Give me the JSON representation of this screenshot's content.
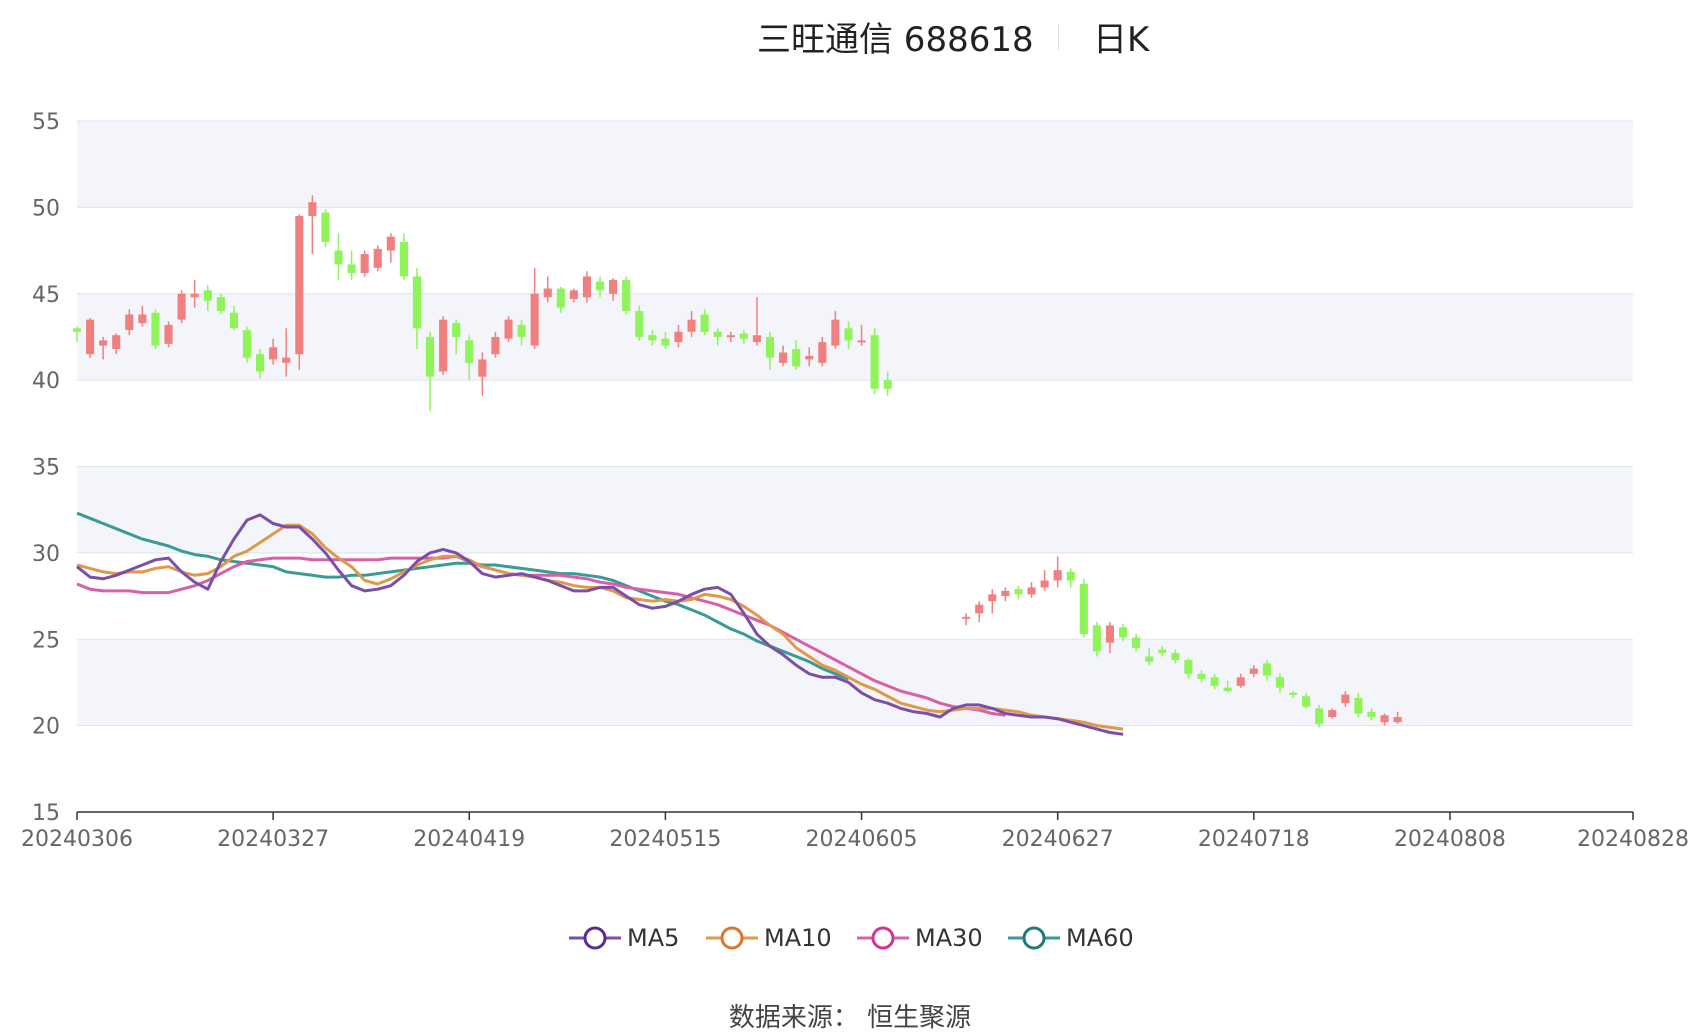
{
  "header": {
    "title": "三旺通信 688618",
    "period": "日K"
  },
  "source_text": "数据来源： 恒生聚源",
  "colors": {
    "up": "#f08080",
    "down": "#8ff35a",
    "MA5": "#7a4fa8",
    "MA10": "#e0984a",
    "MA30": "#d95fa8",
    "MA60": "#3a9a96",
    "grid": "#dde3ee",
    "band": "#f4f5fa"
  },
  "chart_data": {
    "type": "candlestick",
    "ylim": [
      15,
      55
    ],
    "yticks": [
      15,
      20,
      25,
      30,
      35,
      40,
      45,
      50,
      55
    ],
    "x_tick_labels": [
      "20240306",
      "20240327",
      "20240419",
      "20240515",
      "20240605",
      "20240627",
      "20240718",
      "20240808",
      "20240828"
    ],
    "x_tick_index": [
      0,
      15,
      30,
      45,
      60,
      75,
      90,
      105,
      119
    ],
    "candles": [
      [
        43.0,
        42.8,
        43.1,
        42.2
      ],
      [
        41.5,
        43.5,
        43.6,
        41.3
      ],
      [
        42.0,
        42.3,
        42.5,
        41.2
      ],
      [
        41.8,
        42.6,
        42.7,
        41.5
      ],
      [
        42.9,
        43.8,
        44.1,
        42.6
      ],
      [
        43.3,
        43.8,
        44.3,
        43.1
      ],
      [
        43.9,
        42.0,
        44.1,
        41.8
      ],
      [
        42.1,
        43.2,
        43.4,
        41.9
      ],
      [
        43.5,
        45.0,
        45.2,
        43.3
      ],
      [
        44.8,
        45.0,
        45.8,
        44.2
      ],
      [
        45.2,
        44.6,
        45.5,
        44.0
      ],
      [
        44.8,
        44.0,
        45.0,
        43.8
      ],
      [
        43.9,
        43.0,
        44.3,
        42.9
      ],
      [
        42.9,
        41.3,
        43.1,
        41.0
      ],
      [
        41.5,
        40.5,
        41.8,
        40.1
      ],
      [
        41.2,
        41.9,
        42.4,
        40.9
      ],
      [
        41.0,
        41.3,
        43.0,
        40.2
      ],
      [
        41.5,
        49.5,
        49.6,
        40.6
      ],
      [
        49.5,
        50.3,
        50.7,
        47.3
      ],
      [
        49.7,
        48.0,
        49.9,
        47.7
      ],
      [
        47.5,
        46.7,
        48.5,
        45.8
      ],
      [
        46.7,
        46.2,
        47.5,
        45.8
      ],
      [
        46.2,
        47.3,
        47.5,
        46.0
      ],
      [
        46.5,
        47.6,
        47.8,
        46.3
      ],
      [
        47.5,
        48.3,
        48.5,
        46.8
      ],
      [
        48.0,
        46.0,
        48.5,
        45.8
      ],
      [
        46.0,
        43.0,
        46.5,
        41.8
      ],
      [
        42.5,
        40.2,
        42.8,
        38.2
      ],
      [
        40.5,
        43.5,
        43.7,
        40.3
      ],
      [
        43.3,
        42.5,
        43.5,
        41.5
      ],
      [
        42.3,
        41.0,
        42.6,
        40.0
      ],
      [
        40.2,
        41.2,
        41.6,
        39.1
      ],
      [
        41.5,
        42.5,
        42.8,
        41.3
      ],
      [
        42.4,
        43.5,
        43.7,
        42.2
      ],
      [
        43.2,
        42.5,
        43.5,
        42.0
      ],
      [
        42.0,
        45.0,
        46.5,
        41.8
      ],
      [
        44.8,
        45.3,
        46.0,
        44.5
      ],
      [
        45.3,
        44.2,
        45.4,
        43.9
      ],
      [
        44.7,
        45.2,
        45.3,
        44.5
      ],
      [
        44.8,
        46.0,
        46.3,
        44.5
      ],
      [
        45.7,
        45.2,
        46.0,
        44.8
      ],
      [
        45.0,
        45.8,
        45.9,
        44.6
      ],
      [
        45.8,
        44.0,
        46.0,
        43.8
      ],
      [
        44.0,
        42.5,
        44.3,
        42.3
      ],
      [
        42.6,
        42.3,
        42.9,
        42.0
      ],
      [
        42.4,
        42.0,
        42.8,
        41.8
      ],
      [
        42.2,
        42.8,
        43.2,
        41.9
      ],
      [
        42.8,
        43.5,
        44.0,
        42.5
      ],
      [
        43.8,
        42.8,
        44.1,
        42.6
      ],
      [
        42.8,
        42.5,
        43.0,
        42.0
      ],
      [
        42.5,
        42.6,
        42.8,
        42.2
      ],
      [
        42.7,
        42.4,
        42.9,
        42.1
      ],
      [
        42.2,
        42.6,
        44.8,
        42.0
      ],
      [
        42.5,
        41.3,
        42.8,
        40.6
      ],
      [
        41.0,
        41.6,
        42.0,
        40.8
      ],
      [
        41.8,
        40.8,
        42.3,
        40.6
      ],
      [
        41.2,
        41.4,
        41.9,
        40.8
      ],
      [
        41.0,
        42.2,
        42.5,
        40.8
      ],
      [
        42.0,
        43.5,
        44.0,
        41.8
      ],
      [
        43.0,
        42.3,
        43.4,
        41.8
      ],
      [
        42.2,
        42.3,
        43.2,
        42.0
      ],
      [
        42.6,
        39.5,
        43.0,
        39.2
      ],
      [
        40.0,
        39.5,
        40.5,
        39.1
      ],
      null,
      null,
      null,
      null,
      null,
      [
        26.2,
        26.3,
        26.5,
        25.8
      ],
      [
        26.5,
        27.0,
        27.2,
        26.0
      ],
      [
        27.2,
        27.6,
        27.9,
        26.5
      ],
      [
        27.5,
        27.8,
        28.0,
        27.2
      ],
      [
        27.9,
        27.6,
        28.1,
        27.3
      ],
      [
        27.6,
        28.0,
        28.3,
        27.4
      ],
      [
        28.0,
        28.4,
        29.0,
        27.8
      ],
      [
        28.4,
        29.0,
        29.8,
        28.0
      ],
      [
        28.9,
        28.4,
        29.1,
        28.0
      ],
      [
        28.2,
        25.3,
        28.5,
        25.1
      ],
      [
        25.8,
        24.3,
        26.0,
        24.0
      ],
      [
        24.8,
        25.8,
        26.0,
        24.2
      ],
      [
        25.7,
        25.1,
        25.9,
        24.9
      ],
      [
        25.1,
        24.5,
        25.3,
        24.3
      ],
      [
        24.0,
        23.7,
        24.5,
        23.5
      ],
      [
        24.4,
        24.2,
        24.6,
        24.0
      ],
      [
        24.2,
        23.8,
        24.4,
        23.6
      ],
      [
        23.8,
        23.0,
        23.9,
        22.7
      ],
      [
        23.0,
        22.7,
        23.2,
        22.5
      ],
      [
        22.8,
        22.3,
        23.0,
        22.1
      ],
      [
        22.2,
        22.0,
        22.6,
        21.9
      ],
      [
        22.3,
        22.8,
        23.0,
        22.2
      ],
      [
        23.0,
        23.3,
        23.5,
        22.8
      ],
      [
        23.6,
        22.9,
        23.8,
        22.6
      ],
      [
        22.8,
        22.2,
        23.0,
        21.9
      ],
      [
        21.9,
        21.8,
        22.0,
        21.6
      ],
      [
        21.7,
        21.1,
        21.9,
        21.0
      ],
      [
        21.0,
        20.1,
        21.2,
        19.9
      ],
      [
        20.5,
        20.9,
        21.0,
        20.4
      ],
      [
        21.3,
        21.8,
        22.0,
        21.1
      ],
      [
        21.6,
        20.7,
        21.9,
        20.5
      ],
      [
        20.8,
        20.5,
        21.0,
        20.3
      ],
      [
        20.2,
        20.6,
        20.7,
        20.0
      ],
      [
        20.2,
        20.5,
        20.8,
        20.1
      ]
    ],
    "ma5": [
      29.2,
      28.6,
      28.5,
      28.7,
      29.0,
      29.3,
      29.6,
      29.7,
      28.9,
      28.3,
      27.9,
      29.5,
      30.8,
      31.9,
      32.2,
      31.7,
      31.5,
      31.5,
      30.8,
      30.0,
      29.0,
      28.1,
      27.8,
      27.9,
      28.1,
      28.7,
      29.5,
      30.0,
      30.2,
      30.0,
      29.5,
      28.8,
      28.6,
      28.7,
      28.8,
      28.6,
      28.4,
      28.1,
      27.8,
      27.8,
      28.0,
      28.0,
      27.5,
      27.0,
      26.8,
      26.9,
      27.2,
      27.6,
      27.9,
      28.0,
      27.6,
      26.5,
      25.3,
      24.6,
      24.1,
      23.5,
      23.0,
      22.8,
      22.8,
      22.5,
      21.9,
      21.5,
      21.3,
      21.0,
      20.8,
      20.7,
      20.5,
      21.0,
      21.2,
      21.2,
      21.0,
      20.7,
      20.6,
      20.5,
      20.5,
      20.4,
      20.2,
      20.0,
      19.8,
      19.6,
      19.5
    ],
    "ma10": [
      29.3,
      29.1,
      28.9,
      28.8,
      28.9,
      28.9,
      29.1,
      29.2,
      28.9,
      28.7,
      28.8,
      29.2,
      29.8,
      30.1,
      30.6,
      31.1,
      31.6,
      31.6,
      31.1,
      30.3,
      29.7,
      29.2,
      28.4,
      28.2,
      28.5,
      28.9,
      29.3,
      29.6,
      29.8,
      29.8,
      29.6,
      29.2,
      29.0,
      28.8,
      28.7,
      28.6,
      28.4,
      28.3,
      28.1,
      28.0,
      28.0,
      27.8,
      27.4,
      27.3,
      27.2,
      27.3,
      27.2,
      27.3,
      27.6,
      27.5,
      27.3,
      26.9,
      26.4,
      25.8,
      25.3,
      24.5,
      24.0,
      23.5,
      23.2,
      22.8,
      22.4,
      22.1,
      21.7,
      21.3,
      21.1,
      20.9,
      20.8,
      20.9,
      21.0,
      21.0,
      21.0,
      20.9,
      20.8,
      20.6,
      20.5,
      20.4,
      20.3,
      20.2,
      20.0,
      19.9,
      19.8
    ],
    "ma30": [
      28.2,
      27.9,
      27.8,
      27.8,
      27.8,
      27.7,
      27.7,
      27.7,
      27.9,
      28.1,
      28.4,
      28.8,
      29.2,
      29.5,
      29.6,
      29.7,
      29.7,
      29.7,
      29.6,
      29.6,
      29.6,
      29.6,
      29.6,
      29.6,
      29.7,
      29.7,
      29.7,
      29.7,
      29.7,
      29.8,
      29.5,
      29.2,
      29.0,
      28.8,
      28.7,
      28.7,
      28.7,
      28.7,
      28.6,
      28.5,
      28.3,
      28.2,
      28.0,
      27.9,
      27.8,
      27.7,
      27.6,
      27.4,
      27.2,
      27.0,
      26.7,
      26.4,
      26.1,
      25.8,
      25.4,
      25.0,
      24.6,
      24.2,
      23.8,
      23.4,
      23.0,
      22.6,
      22.3,
      22.0,
      21.8,
      21.6,
      21.3,
      21.1,
      21.0,
      20.9,
      20.7,
      20.6
    ],
    "ma60": [
      32.3,
      32.0,
      31.7,
      31.4,
      31.1,
      30.8,
      30.6,
      30.4,
      30.1,
      29.9,
      29.8,
      29.6,
      29.5,
      29.4,
      29.3,
      29.2,
      28.9,
      28.8,
      28.7,
      28.6,
      28.6,
      28.7,
      28.7,
      28.8,
      28.9,
      29.0,
      29.1,
      29.2,
      29.3,
      29.4,
      29.4,
      29.3,
      29.3,
      29.2,
      29.1,
      29.0,
      28.9,
      28.8,
      28.8,
      28.7,
      28.6,
      28.4,
      28.1,
      27.8,
      27.5,
      27.2,
      27.0,
      26.7,
      26.4,
      26.0,
      25.6,
      25.3,
      24.9,
      24.6,
      24.3,
      24.0,
      23.7,
      23.3,
      23.0,
      22.7
    ]
  },
  "legend": [
    {
      "key": "MA5",
      "label": "MA5",
      "stroke": "#5a2d91"
    },
    {
      "key": "MA10",
      "label": "MA10",
      "stroke": "#d9772a"
    },
    {
      "key": "MA30",
      "label": "MA30",
      "stroke": "#d0358f"
    },
    {
      "key": "MA60",
      "label": "MA60",
      "stroke": "#1f7a78"
    }
  ]
}
